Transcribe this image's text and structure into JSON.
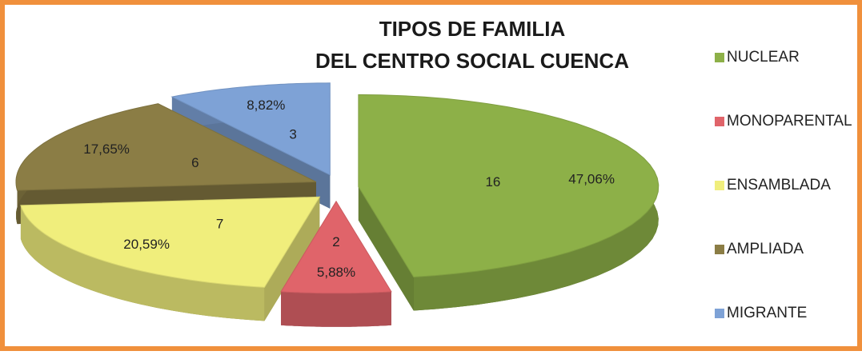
{
  "chart_data": {
    "type": "pie3d",
    "title": [
      "TIPOS DE FAMILIA",
      "DEL CENTRO SOCIAL CUENCA"
    ],
    "categories": [
      "NUCLEAR",
      "MONOPARENTAL",
      "ENSAMBLADA",
      "AMPLIADA",
      "MIGRANTE"
    ],
    "values": [
      16,
      2,
      7,
      6,
      3
    ],
    "percent_labels": [
      "47,06%",
      "5,88%",
      "20,59%",
      "17,65%",
      "8,82%"
    ],
    "colors": [
      "#8db048",
      "#e0646a",
      "#f0ee7c",
      "#8b7d45",
      "#7ea2d6"
    ],
    "legend": "right"
  }
}
